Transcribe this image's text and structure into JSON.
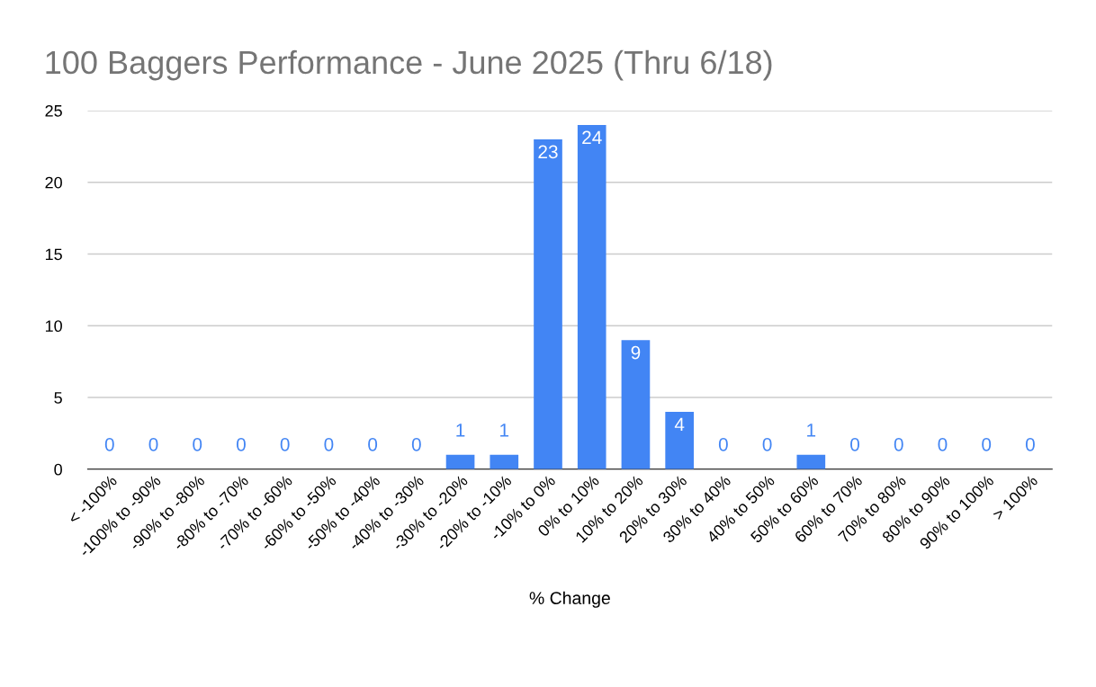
{
  "chart_data": {
    "type": "bar",
    "title": "100 Baggers Performance - June 2025 (Thru 6/18)",
    "xlabel": "% Change",
    "categories": [
      "< -100%",
      "-100% to -90%",
      "-90% to -80%",
      "-80% to -70%",
      "-70% to -60%",
      "-60% to -50%",
      "-50% to -40%",
      "-40% to -30%",
      "-30% to -20%",
      "-20% to -10%",
      "-10% to 0%",
      "0% to 10%",
      "10% to 20%",
      "20% to 30%",
      "30% to 40%",
      "40% to 50%",
      "50% to 60%",
      "60% to 70%",
      "70% to 80%",
      "80% to 90%",
      "90% to 100%",
      "> 100%"
    ],
    "values": [
      0,
      0,
      0,
      0,
      0,
      0,
      0,
      0,
      1,
      1,
      23,
      24,
      9,
      4,
      0,
      0,
      1,
      0,
      0,
      0,
      0,
      0
    ],
    "color": "#4285f4",
    "ylim": [
      0,
      25
    ],
    "yticks": [
      0,
      5,
      10,
      15,
      20,
      25
    ],
    "grid": "y",
    "data_labels": true,
    "legend": false
  }
}
